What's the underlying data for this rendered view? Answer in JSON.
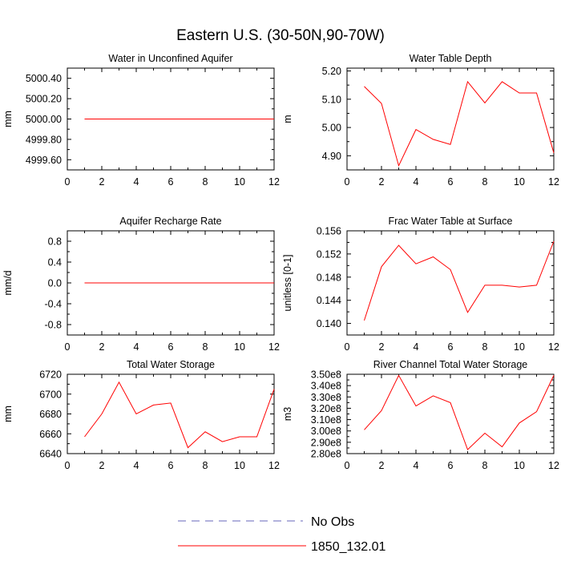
{
  "figure_title": "Eastern U.S. (30-50N,90-70W)",
  "colors": {
    "model": "#ff0000",
    "obs": "#6666bb",
    "axis": "#000000"
  },
  "legend": [
    {
      "label": "No Obs",
      "style": "dashed",
      "color": "#6666bb"
    },
    {
      "label": "1850_132.01",
      "style": "solid",
      "color": "#ff0000"
    }
  ],
  "chart_data": [
    {
      "type": "line",
      "title": "Water in Unconfined Aquifer",
      "ylabel": "mm",
      "xlim": [
        0,
        12
      ],
      "ylim": [
        4999.5,
        5000.5
      ],
      "xticks": [
        "0",
        "2",
        "4",
        "6",
        "8",
        "10",
        "12"
      ],
      "yticks": [
        {
          "v": 4999.6,
          "label": "4999.60"
        },
        {
          "v": 4999.8,
          "label": "4999.80"
        },
        {
          "v": 5000.0,
          "label": "5000.00"
        },
        {
          "v": 5000.2,
          "label": "5000.20"
        },
        {
          "v": 5000.4,
          "label": "5000.40"
        }
      ],
      "series": [
        {
          "x": [
            1,
            2,
            3,
            4,
            5,
            6,
            7,
            8,
            9,
            10,
            11,
            12
          ],
          "values": [
            5000,
            5000,
            5000,
            5000,
            5000,
            5000,
            5000,
            5000,
            5000,
            5000,
            5000,
            5000
          ]
        }
      ]
    },
    {
      "type": "line",
      "title": "Water Table Depth",
      "ylabel": "m",
      "xlim": [
        0,
        12
      ],
      "ylim": [
        4.85,
        5.21
      ],
      "xticks": [
        "0",
        "2",
        "4",
        "6",
        "8",
        "10",
        "12"
      ],
      "yticks": [
        {
          "v": 4.9,
          "label": "4.90"
        },
        {
          "v": 5.0,
          "label": "5.00"
        },
        {
          "v": 5.1,
          "label": "5.10"
        },
        {
          "v": 5.2,
          "label": "5.20"
        }
      ],
      "series": [
        {
          "x": [
            1,
            2,
            3,
            4,
            5,
            6,
            7,
            8,
            9,
            10,
            11,
            12
          ],
          "values": [
            5.145,
            5.085,
            4.865,
            4.993,
            4.958,
            4.94,
            5.162,
            5.087,
            5.162,
            5.122,
            5.122,
            4.91
          ]
        }
      ]
    },
    {
      "type": "line",
      "title": "Aquifer Recharge Rate",
      "ylabel": "mm/d",
      "xlim": [
        0,
        12
      ],
      "ylim": [
        -1.0,
        1.0
      ],
      "xticks": [
        "0",
        "2",
        "4",
        "6",
        "8",
        "10",
        "12"
      ],
      "yticks": [
        {
          "v": -0.8,
          "label": "-0.8"
        },
        {
          "v": -0.4,
          "label": "-0.4"
        },
        {
          "v": 0.0,
          "label": "0.0"
        },
        {
          "v": 0.4,
          "label": "0.4"
        },
        {
          "v": 0.8,
          "label": "0.8"
        }
      ],
      "series": [
        {
          "x": [
            1,
            2,
            3,
            4,
            5,
            6,
            7,
            8,
            9,
            10,
            11,
            12
          ],
          "values": [
            0,
            0,
            0,
            0,
            0,
            0,
            0,
            0,
            0,
            0,
            0,
            0
          ]
        }
      ]
    },
    {
      "type": "line",
      "title": "Frac Water Table at Surface",
      "ylabel": "unitless [0-1]",
      "xlim": [
        0,
        12
      ],
      "ylim": [
        0.138,
        0.156
      ],
      "xticks": [
        "0",
        "2",
        "4",
        "6",
        "8",
        "10",
        "12"
      ],
      "yticks": [
        {
          "v": 0.14,
          "label": "0.140"
        },
        {
          "v": 0.144,
          "label": "0.144"
        },
        {
          "v": 0.148,
          "label": "0.148"
        },
        {
          "v": 0.152,
          "label": "0.152"
        },
        {
          "v": 0.156,
          "label": "0.156"
        }
      ],
      "series": [
        {
          "x": [
            1,
            2,
            3,
            4,
            5,
            6,
            7,
            8,
            9,
            10,
            11,
            12
          ],
          "values": [
            0.1405,
            0.1498,
            0.1535,
            0.1503,
            0.1515,
            0.1493,
            0.1419,
            0.1466,
            0.1466,
            0.1463,
            0.1466,
            0.1542
          ]
        }
      ]
    },
    {
      "type": "line",
      "title": "Total Water Storage",
      "ylabel": "mm",
      "xlim": [
        0,
        12
      ],
      "ylim": [
        6640,
        6720
      ],
      "xticks": [
        "0",
        "2",
        "4",
        "6",
        "8",
        "10",
        "12"
      ],
      "yticks": [
        {
          "v": 6640,
          "label": "6640"
        },
        {
          "v": 6660,
          "label": "6660"
        },
        {
          "v": 6680,
          "label": "6680"
        },
        {
          "v": 6700,
          "label": "6700"
        },
        {
          "v": 6720,
          "label": "6720"
        }
      ],
      "series": [
        {
          "x": [
            1,
            2,
            3,
            4,
            5,
            6,
            7,
            8,
            9,
            10,
            11,
            12
          ],
          "values": [
            6657,
            6680,
            6712,
            6680,
            6689,
            6691,
            6646,
            6662,
            6652,
            6657,
            6657,
            6705
          ]
        }
      ]
    },
    {
      "type": "line",
      "title": "River Channel Total Water Storage",
      "ylabel": "m3",
      "xlim": [
        0,
        12
      ],
      "ylim": [
        280000000.0,
        350000000.0
      ],
      "xticks": [
        "0",
        "2",
        "4",
        "6",
        "8",
        "10",
        "12"
      ],
      "yticks": [
        {
          "v": 280000000.0,
          "label": "2.80e8"
        },
        {
          "v": 290000000.0,
          "label": "2.90e8"
        },
        {
          "v": 300000000.0,
          "label": "3.00e8"
        },
        {
          "v": 310000000.0,
          "label": "3.10e8"
        },
        {
          "v": 320000000.0,
          "label": "3.20e8"
        },
        {
          "v": 330000000.0,
          "label": "3.30e8"
        },
        {
          "v": 340000000.0,
          "label": "3.40e8"
        },
        {
          "v": 350000000.0,
          "label": "3.50e8"
        }
      ],
      "series": [
        {
          "x": [
            1,
            2,
            3,
            4,
            5,
            6,
            7,
            8,
            9,
            10,
            11,
            12
          ],
          "values": [
            301000000.0,
            318000000.0,
            349000000.0,
            322000000.0,
            331000000.0,
            325000000.0,
            283500000.0,
            298000000.0,
            286000000.0,
            307000000.0,
            317000000.0,
            349000000.0
          ]
        }
      ]
    }
  ]
}
